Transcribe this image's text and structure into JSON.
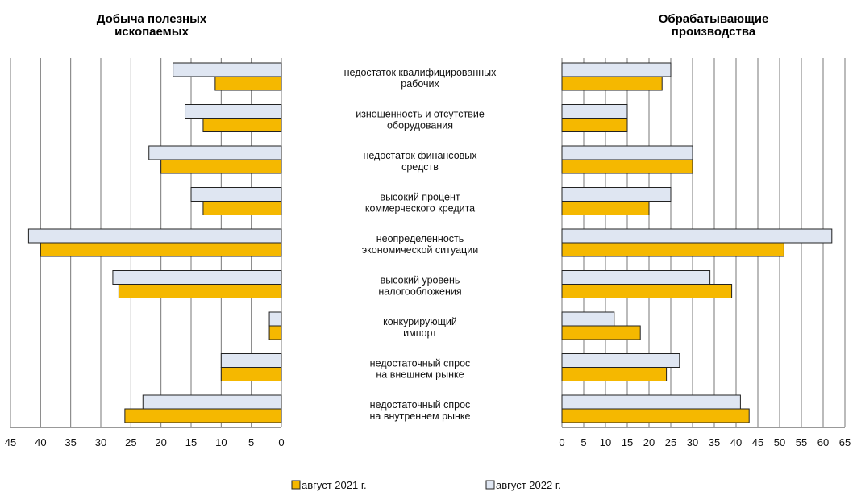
{
  "chart_data": {
    "type": "bar",
    "orientation": "horizontal",
    "categories": [
      [
        "недостаток квалифицированных",
        "рабочих"
      ],
      [
        "изношенность и отсутствие",
        "оборудования"
      ],
      [
        "недостаток финансовых",
        "средств"
      ],
      [
        "высокий процент",
        "коммерческого кредита"
      ],
      [
        "неопределенность",
        "экономической ситуации"
      ],
      [
        "высокий уровень",
        "налогообложения"
      ],
      [
        "конкурирующий",
        "импорт"
      ],
      [
        "недостаточный спрос",
        "на внешнем рынке"
      ],
      [
        "недостаточный спрос",
        "на внутреннем рынке"
      ]
    ],
    "series_names": [
      "август 2021 г.",
      "август 2022 г."
    ],
    "colors": {
      "2021": "#f5b800",
      "2022": "#dfe6f2",
      "stroke": "#222222",
      "grid": "#777777"
    },
    "panels": [
      {
        "title": [
          "Добыча полезных",
          "ископаемых"
        ],
        "direction": "reversed",
        "xlim": [
          0,
          45
        ],
        "ticks": [
          45,
          40,
          35,
          30,
          25,
          20,
          15,
          10,
          5,
          0
        ],
        "series": [
          {
            "name": "август 2021 г.",
            "values": [
              11,
              13,
              20,
              13,
              40,
              27,
              2,
              10,
              26
            ]
          },
          {
            "name": "август 2022 г.",
            "values": [
              18,
              16,
              22,
              15,
              42,
              28,
              2,
              10,
              23
            ]
          }
        ]
      },
      {
        "title": [
          "Обрабатывающие",
          "производства"
        ],
        "direction": "normal",
        "xlim": [
          0,
          65
        ],
        "ticks": [
          0,
          5,
          10,
          15,
          20,
          25,
          30,
          35,
          40,
          45,
          50,
          55,
          60,
          65
        ],
        "series": [
          {
            "name": "август 2021 г.",
            "values": [
              23,
              15,
              30,
              20,
              51,
              39,
              18,
              24,
              43
            ]
          },
          {
            "name": "август 2022 г.",
            "values": [
              25,
              15,
              30,
              25,
              62,
              34,
              12,
              27,
              41
            ]
          }
        ]
      }
    ],
    "legend": [
      "август 2021 г.",
      "август 2022 г."
    ],
    "legend_position": "bottom",
    "grid": true
  }
}
